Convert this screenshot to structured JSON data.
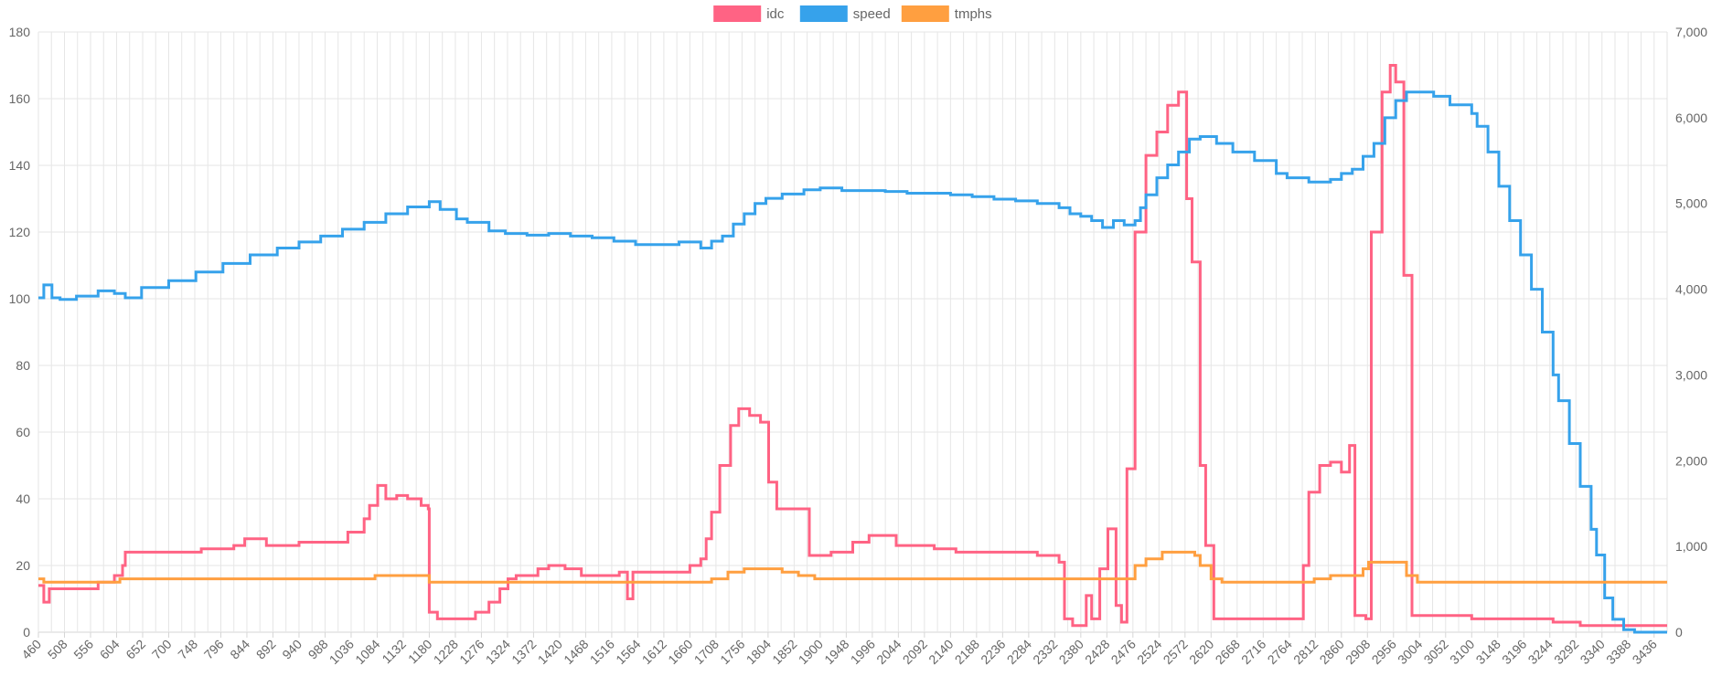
{
  "chart_data": {
    "type": "line",
    "title": "",
    "xlabel": "",
    "ylabel": "",
    "legend_position": "top-center",
    "grid": true,
    "stepped": true,
    "x_ticks": [
      460,
      508,
      556,
      604,
      652,
      700,
      748,
      796,
      844,
      892,
      940,
      988,
      1036,
      1084,
      1132,
      1180,
      1228,
      1276,
      1324,
      1372,
      1420,
      1468,
      1516,
      1564,
      1612,
      1660,
      1708,
      1756,
      1804,
      1852,
      1900,
      1948,
      1996,
      2044,
      2092,
      2140,
      2188,
      2236,
      2284,
      2332,
      2380,
      2428,
      2476,
      2524,
      2572,
      2620,
      2668,
      2716,
      2764,
      2812,
      2860,
      2908,
      2956,
      3004,
      3052,
      3100,
      3148,
      3196,
      3244,
      3292,
      3340,
      3388,
      3436
    ],
    "xlim": [
      460,
      3460
    ],
    "y_left": {
      "min": 0,
      "max": 180,
      "step": 20,
      "ticks": [
        "0",
        "20",
        "40",
        "60",
        "80",
        "100",
        "120",
        "140",
        "160",
        "180"
      ]
    },
    "y_right": {
      "min": 0,
      "max": 7000,
      "step": 1000,
      "ticks": [
        "0",
        "1,000",
        "2,000",
        "3,000",
        "4,000",
        "5,000",
        "6,000",
        "7,000"
      ]
    },
    "series": [
      {
        "name": "idc",
        "axis": "left",
        "color": "#ff6384",
        "points": [
          [
            460,
            14
          ],
          [
            470,
            9
          ],
          [
            480,
            13
          ],
          [
            500,
            13
          ],
          [
            530,
            13
          ],
          [
            570,
            15
          ],
          [
            600,
            17
          ],
          [
            615,
            20
          ],
          [
            620,
            24
          ],
          [
            650,
            24
          ],
          [
            700,
            24
          ],
          [
            760,
            25
          ],
          [
            820,
            26
          ],
          [
            840,
            28
          ],
          [
            880,
            26
          ],
          [
            940,
            27
          ],
          [
            1000,
            27
          ],
          [
            1030,
            30
          ],
          [
            1060,
            34
          ],
          [
            1070,
            38
          ],
          [
            1085,
            44
          ],
          [
            1100,
            40
          ],
          [
            1120,
            41
          ],
          [
            1140,
            40
          ],
          [
            1165,
            38
          ],
          [
            1178,
            37
          ],
          [
            1180,
            6
          ],
          [
            1195,
            4
          ],
          [
            1240,
            4
          ],
          [
            1265,
            6
          ],
          [
            1290,
            9
          ],
          [
            1310,
            13
          ],
          [
            1325,
            16
          ],
          [
            1340,
            17
          ],
          [
            1380,
            19
          ],
          [
            1400,
            20
          ],
          [
            1430,
            19
          ],
          [
            1460,
            17
          ],
          [
            1500,
            17
          ],
          [
            1530,
            18
          ],
          [
            1545,
            10
          ],
          [
            1555,
            18
          ],
          [
            1580,
            18
          ],
          [
            1620,
            18
          ],
          [
            1660,
            20
          ],
          [
            1680,
            22
          ],
          [
            1690,
            28
          ],
          [
            1700,
            36
          ],
          [
            1715,
            50
          ],
          [
            1735,
            62
          ],
          [
            1750,
            67
          ],
          [
            1770,
            65
          ],
          [
            1790,
            63
          ],
          [
            1805,
            45
          ],
          [
            1820,
            37
          ],
          [
            1870,
            37
          ],
          [
            1880,
            23
          ],
          [
            1920,
            24
          ],
          [
            1960,
            27
          ],
          [
            1990,
            29
          ],
          [
            2040,
            26
          ],
          [
            2080,
            26
          ],
          [
            2110,
            25
          ],
          [
            2150,
            24
          ],
          [
            2200,
            24
          ],
          [
            2300,
            23
          ],
          [
            2340,
            21
          ],
          [
            2350,
            4
          ],
          [
            2365,
            2
          ],
          [
            2380,
            2
          ],
          [
            2390,
            11
          ],
          [
            2400,
            4
          ],
          [
            2415,
            19
          ],
          [
            2430,
            31
          ],
          [
            2445,
            8
          ],
          [
            2455,
            3
          ],
          [
            2465,
            49
          ],
          [
            2480,
            120
          ],
          [
            2500,
            143
          ],
          [
            2520,
            150
          ],
          [
            2540,
            158
          ],
          [
            2560,
            162
          ],
          [
            2575,
            130
          ],
          [
            2585,
            111
          ],
          [
            2600,
            50
          ],
          [
            2610,
            26
          ],
          [
            2625,
            4
          ],
          [
            2700,
            4
          ],
          [
            2780,
            4
          ],
          [
            2790,
            20
          ],
          [
            2800,
            42
          ],
          [
            2820,
            50
          ],
          [
            2840,
            51
          ],
          [
            2860,
            48
          ],
          [
            2875,
            56
          ],
          [
            2885,
            5
          ],
          [
            2905,
            4
          ],
          [
            2915,
            120
          ],
          [
            2935,
            162
          ],
          [
            2950,
            170
          ],
          [
            2960,
            165
          ],
          [
            2975,
            107
          ],
          [
            2990,
            5
          ],
          [
            3100,
            4
          ],
          [
            3250,
            3
          ],
          [
            3300,
            2
          ],
          [
            3460,
            2
          ]
        ]
      },
      {
        "name": "speed",
        "axis": "right",
        "color": "#36a2eb",
        "points": [
          [
            460,
            3900
          ],
          [
            470,
            4050
          ],
          [
            485,
            3900
          ],
          [
            500,
            3880
          ],
          [
            530,
            3920
          ],
          [
            570,
            3980
          ],
          [
            600,
            3950
          ],
          [
            620,
            3900
          ],
          [
            650,
            4020
          ],
          [
            700,
            4100
          ],
          [
            750,
            4200
          ],
          [
            800,
            4300
          ],
          [
            850,
            4400
          ],
          [
            900,
            4480
          ],
          [
            940,
            4550
          ],
          [
            980,
            4620
          ],
          [
            1020,
            4700
          ],
          [
            1060,
            4780
          ],
          [
            1100,
            4880
          ],
          [
            1140,
            4960
          ],
          [
            1180,
            5020
          ],
          [
            1200,
            4930
          ],
          [
            1230,
            4820
          ],
          [
            1250,
            4780
          ],
          [
            1290,
            4680
          ],
          [
            1320,
            4650
          ],
          [
            1360,
            4630
          ],
          [
            1400,
            4650
          ],
          [
            1440,
            4620
          ],
          [
            1480,
            4600
          ],
          [
            1520,
            4560
          ],
          [
            1560,
            4520
          ],
          [
            1600,
            4520
          ],
          [
            1640,
            4550
          ],
          [
            1680,
            4480
          ],
          [
            1700,
            4560
          ],
          [
            1720,
            4620
          ],
          [
            1740,
            4760
          ],
          [
            1760,
            4880
          ],
          [
            1780,
            5000
          ],
          [
            1800,
            5060
          ],
          [
            1830,
            5110
          ],
          [
            1870,
            5160
          ],
          [
            1900,
            5180
          ],
          [
            1940,
            5150
          ],
          [
            1980,
            5150
          ],
          [
            2020,
            5140
          ],
          [
            2060,
            5120
          ],
          [
            2100,
            5120
          ],
          [
            2140,
            5100
          ],
          [
            2180,
            5080
          ],
          [
            2220,
            5050
          ],
          [
            2260,
            5030
          ],
          [
            2300,
            5000
          ],
          [
            2340,
            4950
          ],
          [
            2360,
            4880
          ],
          [
            2380,
            4850
          ],
          [
            2400,
            4800
          ],
          [
            2420,
            4720
          ],
          [
            2440,
            4800
          ],
          [
            2460,
            4750
          ],
          [
            2480,
            4800
          ],
          [
            2490,
            4950
          ],
          [
            2500,
            5100
          ],
          [
            2520,
            5300
          ],
          [
            2540,
            5450
          ],
          [
            2560,
            5600
          ],
          [
            2580,
            5750
          ],
          [
            2600,
            5780
          ],
          [
            2630,
            5700
          ],
          [
            2660,
            5600
          ],
          [
            2700,
            5500
          ],
          [
            2740,
            5350
          ],
          [
            2760,
            5300
          ],
          [
            2800,
            5250
          ],
          [
            2840,
            5280
          ],
          [
            2860,
            5350
          ],
          [
            2880,
            5400
          ],
          [
            2900,
            5550
          ],
          [
            2920,
            5700
          ],
          [
            2940,
            6000
          ],
          [
            2960,
            6200
          ],
          [
            2980,
            6300
          ],
          [
            3000,
            6300
          ],
          [
            3030,
            6250
          ],
          [
            3060,
            6150
          ],
          [
            3100,
            6050
          ],
          [
            3110,
            5900
          ],
          [
            3130,
            5600
          ],
          [
            3150,
            5200
          ],
          [
            3170,
            4800
          ],
          [
            3190,
            4400
          ],
          [
            3210,
            4000
          ],
          [
            3230,
            3500
          ],
          [
            3250,
            3000
          ],
          [
            3260,
            2700
          ],
          [
            3280,
            2200
          ],
          [
            3300,
            1700
          ],
          [
            3320,
            1200
          ],
          [
            3330,
            900
          ],
          [
            3345,
            400
          ],
          [
            3360,
            150
          ],
          [
            3380,
            30
          ],
          [
            3400,
            0
          ],
          [
            3460,
            0
          ]
        ]
      },
      {
        "name": "tmphs",
        "axis": "left",
        "color": "#ff9f40",
        "points": [
          [
            460,
            16
          ],
          [
            470,
            15
          ],
          [
            600,
            15
          ],
          [
            610,
            16
          ],
          [
            1070,
            16
          ],
          [
            1080,
            17
          ],
          [
            1170,
            17
          ],
          [
            1180,
            15
          ],
          [
            1300,
            15
          ],
          [
            1680,
            15
          ],
          [
            1700,
            16
          ],
          [
            1730,
            18
          ],
          [
            1760,
            19
          ],
          [
            1800,
            19
          ],
          [
            1830,
            18
          ],
          [
            1860,
            17
          ],
          [
            1890,
            16
          ],
          [
            1960,
            16
          ],
          [
            2460,
            16
          ],
          [
            2480,
            20
          ],
          [
            2500,
            22
          ],
          [
            2530,
            24
          ],
          [
            2560,
            24
          ],
          [
            2590,
            23
          ],
          [
            2600,
            20
          ],
          [
            2620,
            16
          ],
          [
            2640,
            15
          ],
          [
            2800,
            15
          ],
          [
            2810,
            16
          ],
          [
            2840,
            17
          ],
          [
            2890,
            17
          ],
          [
            2900,
            19
          ],
          [
            2910,
            21
          ],
          [
            2960,
            21
          ],
          [
            2980,
            17
          ],
          [
            3000,
            15
          ],
          [
            3460,
            15
          ]
        ]
      }
    ]
  }
}
